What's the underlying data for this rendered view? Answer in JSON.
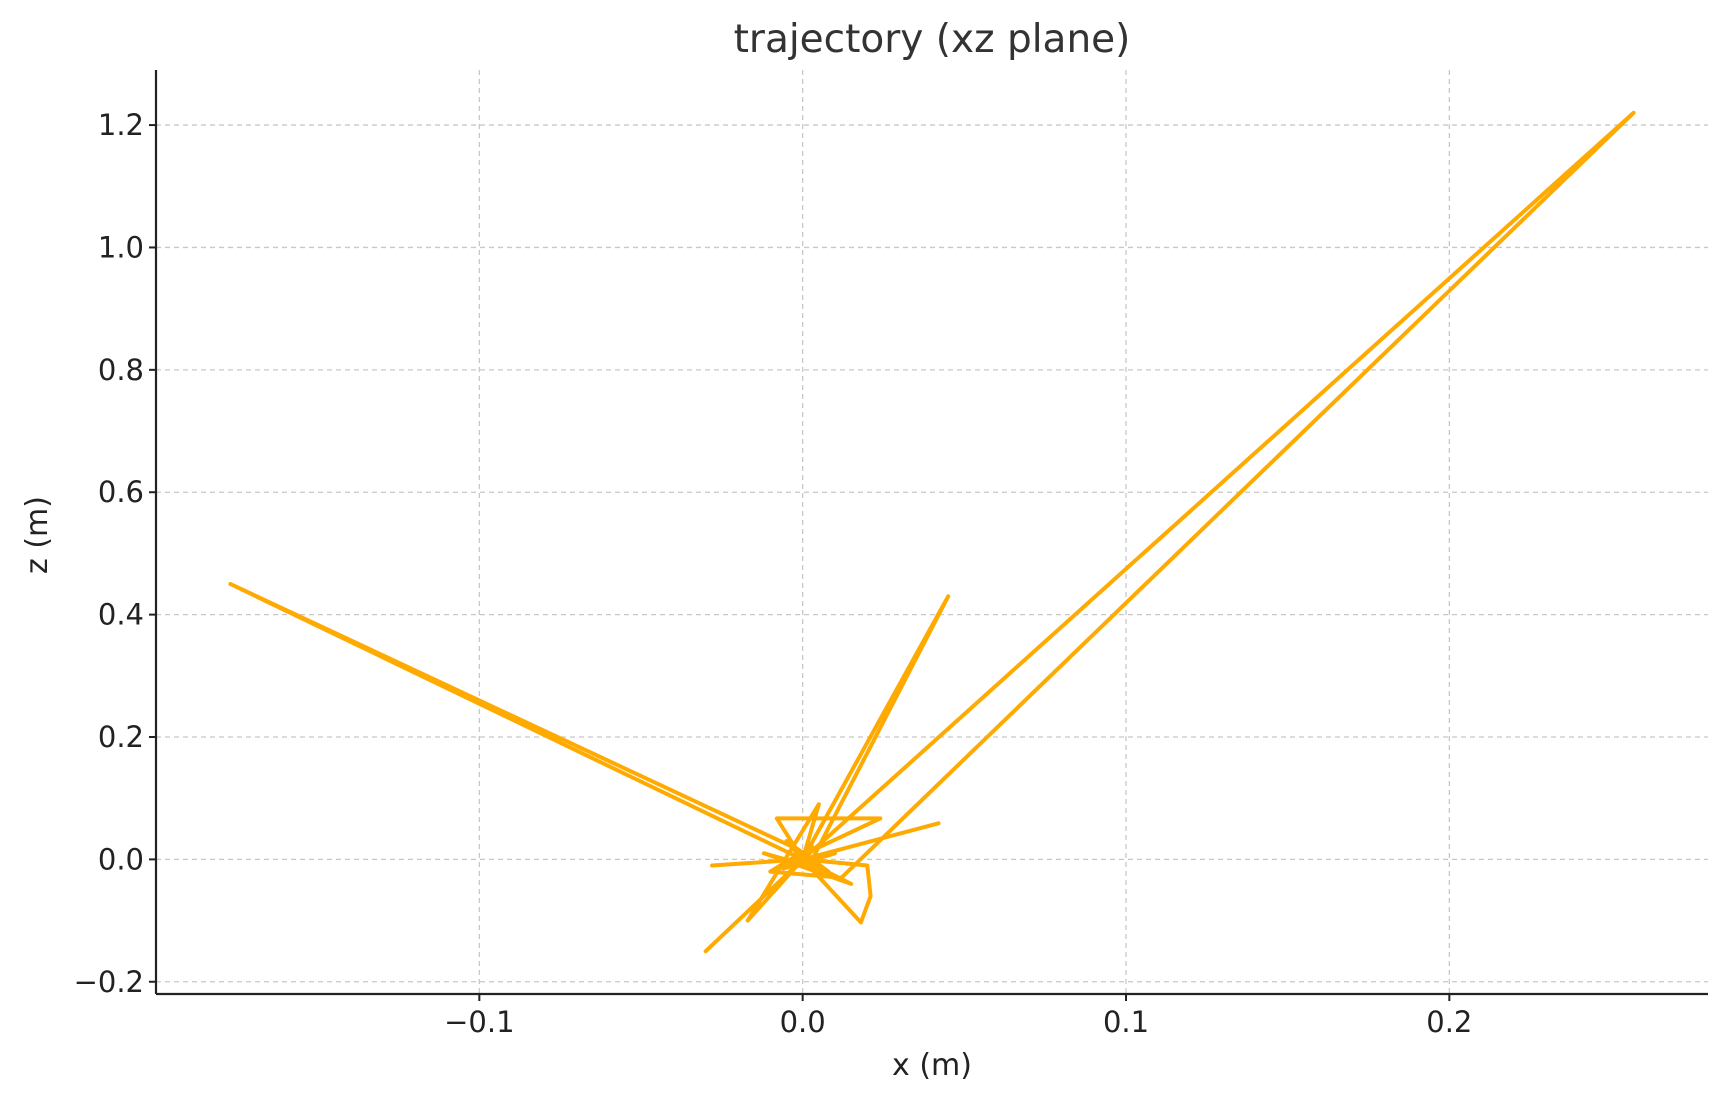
{
  "chart_data": {
    "type": "line",
    "title": "trajectory (xz plane)",
    "xlabel": "x (m)",
    "ylabel": "z (m)",
    "xlim": [
      -0.2,
      0.28
    ],
    "ylim": [
      -0.22,
      1.29
    ],
    "xticks": [
      -0.1,
      0.0,
      0.1,
      0.2
    ],
    "xtick_labels": [
      "−0.1",
      "0.0",
      "0.1",
      "0.2"
    ],
    "yticks": [
      -0.2,
      0.0,
      0.2,
      0.4,
      0.6,
      0.8,
      1.0,
      1.2
    ],
    "ytick_labels": [
      "−0.2",
      "0.0",
      "0.2",
      "0.4",
      "0.6",
      "0.8",
      "1.0",
      "1.2"
    ],
    "grid": true,
    "color": "#FFAA00",
    "series": [
      {
        "x": [
          0.0,
          -0.177,
          -0.003,
          0.002,
          0.045,
          0.0,
          -0.03,
          0.0,
          -0.008,
          0.0,
          0.024,
          -0.003,
          0.0,
          -0.028,
          0.0,
          0.042,
          0.0,
          0.02,
          0.021,
          0.018,
          0.0,
          0.005,
          -0.017,
          0.0,
          0.0,
          -0.01,
          0.012,
          0.257,
          0.0,
          -0.005,
          0.008,
          -0.012,
          0.015,
          0.0,
          0.003,
          -0.006,
          0.01,
          0.0
        ],
        "y": [
          0.0,
          0.45,
          0.02,
          -0.01,
          0.43,
          0.0,
          -0.15,
          0.0,
          0.067,
          0.067,
          0.067,
          0.0,
          0.0,
          -0.01,
          0.0,
          0.059,
          0.0,
          -0.01,
          -0.06,
          -0.103,
          0.0,
          0.09,
          -0.1,
          0.0,
          0.012,
          -0.02,
          -0.03,
          1.22,
          0.0,
          0.03,
          -0.02,
          0.01,
          -0.04,
          0.0,
          0.02,
          -0.015,
          0.01,
          0.0
        ]
      }
    ]
  }
}
